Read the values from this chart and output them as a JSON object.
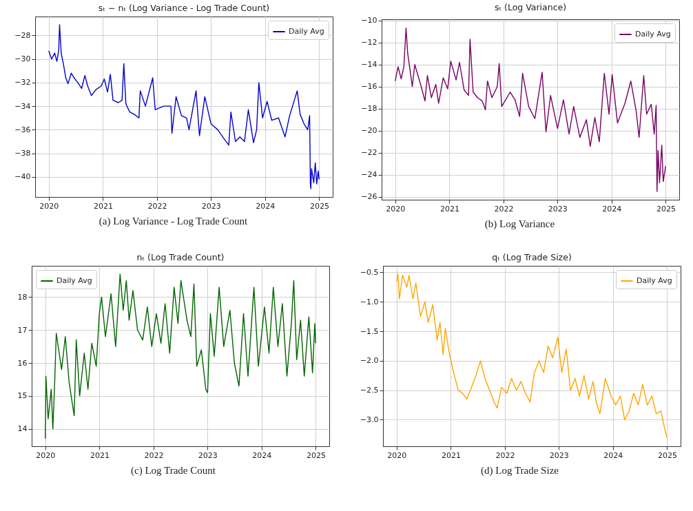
{
  "chart_data": [
    {
      "type": "line",
      "title": "sₜ − nₜ (Log Variance - Log Trade Count)",
      "annotations": [
        "(a) Log Variance - Log Trade Count"
      ],
      "legend": "top right",
      "grid": true,
      "xlim": [
        "2019-10-01",
        "2025-04-02"
      ],
      "xticks": [
        "2020",
        "2021",
        "2022",
        "2023",
        "2024",
        "2025"
      ],
      "ylim": [
        -41.7,
        -26.4
      ],
      "yticks": [
        -40,
        -38,
        -36,
        -34,
        -32,
        -30,
        -28
      ],
      "series": [
        {
          "name": "Daily Avg",
          "color": "#0000cc",
          "x": [
            "2020-01-01",
            "2020-01-20",
            "2020-02-10",
            "2020-02-25",
            "2020-03-08",
            "2020-03-14",
            "2020-03-25",
            "2020-04-10",
            "2020-04-25",
            "2020-05-10",
            "2020-06-01",
            "2020-06-20",
            "2020-07-15",
            "2020-08-10",
            "2020-09-01",
            "2020-09-20",
            "2020-10-15",
            "2020-11-15",
            "2020-12-20",
            "2021-01-10",
            "2021-02-01",
            "2021-02-20",
            "2021-03-10",
            "2021-04-15",
            "2021-05-10",
            "2021-05-22",
            "2021-06-05",
            "2021-07-01",
            "2021-08-01",
            "2021-09-01",
            "2021-09-10",
            "2021-10-15",
            "2021-12-03",
            "2021-12-20",
            "2022-02-15",
            "2022-04-05",
            "2022-04-12",
            "2022-05-10",
            "2022-06-15",
            "2022-07-20",
            "2022-08-05",
            "2022-09-22",
            "2022-10-15",
            "2022-11-20",
            "2023-01-01",
            "2023-02-15",
            "2023-04-01",
            "2023-05-01",
            "2023-05-15",
            "2023-06-15",
            "2023-07-15",
            "2023-08-15",
            "2023-09-10",
            "2023-10-15",
            "2023-11-05",
            "2023-11-20",
            "2023-12-15",
            "2024-01-15",
            "2024-02-15",
            "2024-04-01",
            "2024-05-15",
            "2024-06-15",
            "2024-08-05",
            "2024-08-25",
            "2024-09-20",
            "2024-10-15",
            "2024-10-28",
            "2024-11-02",
            "2024-11-05",
            "2024-11-10",
            "2024-11-25",
            "2024-12-05",
            "2024-12-15",
            "2024-12-25",
            "2024-12-31"
          ],
          "values": [
            -29.3,
            -30.0,
            -29.5,
            -30.2,
            -29.3,
            -27.1,
            -29.5,
            -30.5,
            -31.6,
            -32.1,
            -31.2,
            -31.6,
            -32.0,
            -32.5,
            -31.4,
            -32.3,
            -33.1,
            -32.6,
            -32.3,
            -31.7,
            -32.8,
            -31.3,
            -33.5,
            -33.7,
            -33.5,
            -30.4,
            -33.8,
            -34.5,
            -34.7,
            -35.0,
            -32.7,
            -34.0,
            -31.6,
            -34.3,
            -34.0,
            -34.0,
            -36.3,
            -33.2,
            -34.8,
            -35.0,
            -36.0,
            -32.7,
            -36.5,
            -33.2,
            -35.5,
            -36.0,
            -36.8,
            -37.3,
            -34.5,
            -37.0,
            -36.6,
            -37.0,
            -34.3,
            -37.1,
            -36.0,
            -32.0,
            -35.0,
            -33.6,
            -35.2,
            -35.0,
            -36.6,
            -34.8,
            -32.7,
            -34.7,
            -35.5,
            -36.0,
            -34.8,
            -40.6,
            -41.0,
            -39.3,
            -40.5,
            -38.8,
            -40.6,
            -39.5,
            -40.2
          ]
        }
      ]
    },
    {
      "type": "line",
      "title": "sₜ (Log Variance)",
      "annotations": [
        "(b) Log Variance"
      ],
      "legend": "top right",
      "grid": true,
      "xlim": [
        "2019-10-01",
        "2025-04-02"
      ],
      "xticks": [
        "2020",
        "2021",
        "2022",
        "2023",
        "2024",
        "2025"
      ],
      "ylim": [
        -26.25,
        -9.9
      ],
      "yticks": [
        -26,
        -24,
        -22,
        -20,
        -18,
        -16,
        -14,
        -12,
        -10
      ],
      "series": [
        {
          "name": "Daily Avg",
          "color": "#780062",
          "x": [
            "2020-01-01",
            "2020-01-20",
            "2020-02-10",
            "2020-02-28",
            "2020-03-14",
            "2020-03-25",
            "2020-04-10",
            "2020-04-25",
            "2020-05-12",
            "2020-06-20",
            "2020-07-20",
            "2020-08-05",
            "2020-09-01",
            "2020-10-01",
            "2020-10-20",
            "2020-11-20",
            "2020-12-20",
            "2021-01-10",
            "2021-02-15",
            "2021-03-10",
            "2021-04-10",
            "2021-05-10",
            "2021-05-20",
            "2021-06-10",
            "2021-07-10",
            "2021-08-10",
            "2021-09-01",
            "2021-09-15",
            "2021-10-15",
            "2021-11-20",
            "2021-12-03",
            "2021-12-20",
            "2022-02-15",
            "2022-03-20",
            "2022-04-20",
            "2022-05-10",
            "2022-06-20",
            "2022-08-01",
            "2022-09-19",
            "2022-10-15",
            "2022-11-15",
            "2023-01-01",
            "2023-02-10",
            "2023-03-20",
            "2023-04-20",
            "2023-06-01",
            "2023-07-15",
            "2023-08-10",
            "2023-09-10",
            "2023-10-10",
            "2023-11-13",
            "2023-12-15",
            "2024-01-05",
            "2024-02-10",
            "2024-04-01",
            "2024-05-10",
            "2024-06-15",
            "2024-07-05",
            "2024-08-05",
            "2024-08-25",
            "2024-09-25",
            "2024-10-15",
            "2024-10-28",
            "2024-11-03",
            "2024-11-10",
            "2024-11-20",
            "2024-12-05",
            "2024-12-15",
            "2024-12-31"
          ],
          "values": [
            -15.5,
            -14.2,
            -15.3,
            -14.2,
            -10.7,
            -13.0,
            -14.5,
            -16.0,
            -14.0,
            -15.8,
            -17.3,
            -15.0,
            -17.0,
            -15.8,
            -17.5,
            -15.2,
            -16.2,
            -13.7,
            -15.4,
            -13.8,
            -16.3,
            -16.8,
            -11.7,
            -16.5,
            -17.0,
            -17.3,
            -18.1,
            -15.5,
            -17.0,
            -16.0,
            -13.9,
            -17.8,
            -16.5,
            -17.2,
            -18.7,
            -14.8,
            -17.8,
            -18.9,
            -14.7,
            -20.1,
            -16.8,
            -19.8,
            -17.2,
            -20.3,
            -17.8,
            -20.6,
            -19.0,
            -21.4,
            -18.8,
            -21.0,
            -14.8,
            -18.5,
            -14.9,
            -19.3,
            -17.5,
            -15.5,
            -18.2,
            -20.6,
            -15.0,
            -18.5,
            -17.6,
            -20.3,
            -17.7,
            -25.5,
            -21.8,
            -24.7,
            -21.3,
            -24.6,
            -23.2
          ]
        }
      ]
    },
    {
      "type": "line",
      "title": "nₜ (Log Trade Count)",
      "annotations": [
        "(c) Log Trade Count"
      ],
      "legend": "top left",
      "grid": true,
      "xlim": [
        "2019-10-01",
        "2025-04-02"
      ],
      "xticks": [
        "2020",
        "2021",
        "2022",
        "2023",
        "2024",
        "2025"
      ],
      "ylim": [
        13.47,
        18.95
      ],
      "yticks": [
        14,
        15,
        16,
        17,
        18
      ],
      "series": [
        {
          "name": "Daily Avg",
          "color": "#006400",
          "x": [
            "2020-01-01",
            "2020-01-05",
            "2020-01-20",
            "2020-02-10",
            "2020-02-21",
            "2020-03-05",
            "2020-03-15",
            "2020-04-20",
            "2020-05-15",
            "2020-06-10",
            "2020-07-14",
            "2020-07-28",
            "2020-08-20",
            "2020-09-20",
            "2020-10-15",
            "2020-11-10",
            "2020-12-10",
            "2020-12-31",
            "2021-01-15",
            "2021-02-10",
            "2021-03-20",
            "2021-04-20",
            "2021-05-20",
            "2021-06-10",
            "2021-07-01",
            "2021-07-20",
            "2021-08-15",
            "2021-09-15",
            "2021-10-20",
            "2021-11-20",
            "2021-12-20",
            "2022-01-20",
            "2022-02-20",
            "2022-03-20",
            "2022-04-20",
            "2022-05-20",
            "2022-06-15",
            "2022-07-05",
            "2022-08-15",
            "2022-09-10",
            "2022-10-01",
            "2022-10-20",
            "2022-11-20",
            "2022-12-20",
            "2023-01-01",
            "2023-01-20",
            "2023-02-15",
            "2023-03-20",
            "2023-04-20",
            "2023-06-01",
            "2023-07-01",
            "2023-08-01",
            "2023-09-01",
            "2023-10-01",
            "2023-11-10",
            "2023-12-10",
            "2024-01-20",
            "2024-02-20",
            "2024-03-20",
            "2024-04-20",
            "2024-05-20",
            "2024-06-20",
            "2024-07-20",
            "2024-08-05",
            "2024-08-25",
            "2024-09-20",
            "2024-10-15",
            "2024-11-15",
            "2024-12-10",
            "2024-12-25",
            "2024-12-31"
          ],
          "values": [
            13.7,
            15.6,
            14.3,
            15.2,
            14.0,
            15.5,
            16.9,
            15.8,
            16.8,
            15.4,
            14.4,
            16.7,
            15.0,
            16.3,
            15.2,
            16.6,
            15.9,
            17.5,
            18.0,
            16.8,
            18.1,
            16.5,
            18.7,
            17.6,
            18.5,
            17.3,
            18.2,
            17.0,
            16.7,
            17.7,
            16.5,
            17.5,
            16.6,
            17.8,
            16.3,
            18.3,
            17.2,
            18.5,
            17.3,
            16.8,
            18.4,
            15.9,
            16.4,
            15.2,
            15.1,
            17.5,
            16.2,
            18.3,
            16.5,
            17.6,
            16.0,
            15.3,
            17.5,
            15.6,
            18.3,
            15.9,
            17.7,
            16.3,
            18.3,
            16.5,
            17.8,
            15.6,
            17.2,
            18.5,
            16.1,
            17.3,
            15.6,
            17.4,
            15.7,
            17.2,
            16.6
          ]
        }
      ]
    },
    {
      "type": "line",
      "title": "qₜ (Log Trade Size)",
      "annotations": [
        "(d) Log Trade Size"
      ],
      "legend": "top right",
      "grid": true,
      "xlim": [
        "2019-10-01",
        "2025-04-02"
      ],
      "xticks": [
        "2020",
        "2021",
        "2022",
        "2023",
        "2024",
        "2025"
      ],
      "ylim": [
        -3.45,
        -0.39
      ],
      "yticks": [
        {
          "value": -3,
          "label": "−3.0"
        },
        {
          "value": -2.5,
          "label": "−2.5"
        },
        {
          "value": -2,
          "label": "−2.0"
        },
        {
          "value": -1.5,
          "label": "−1.5"
        },
        {
          "value": -1,
          "label": "−1.0"
        },
        {
          "value": -0.5,
          "label": "−0.5"
        }
      ],
      "series": [
        {
          "name": "Daily Avg",
          "color": "#ffa500",
          "x": [
            "2020-01-01",
            "2020-01-10",
            "2020-01-20",
            "2020-02-10",
            "2020-03-10",
            "2020-03-25",
            "2020-04-20",
            "2020-05-10",
            "2020-06-10",
            "2020-07-10",
            "2020-08-01",
            "2020-09-01",
            "2020-10-01",
            "2020-10-20",
            "2020-11-10",
            "2020-11-25",
            "2020-12-20",
            "2021-01-20",
            "2021-02-20",
            "2021-03-20",
            "2021-04-20",
            "2021-05-20",
            "2021-06-20",
            "2021-07-20",
            "2021-08-20",
            "2021-09-20",
            "2021-10-20",
            "2021-11-10",
            "2021-12-10",
            "2022-01-15",
            "2022-02-15",
            "2022-03-20",
            "2022-04-20",
            "2022-05-20",
            "2022-06-20",
            "2022-07-20",
            "2022-08-20",
            "2022-09-20",
            "2022-10-20",
            "2022-11-20",
            "2022-12-25",
            "2023-01-20",
            "2023-02-20",
            "2023-03-20",
            "2023-04-20",
            "2023-05-20",
            "2023-06-20",
            "2023-07-20",
            "2023-08-20",
            "2023-09-10",
            "2023-10-05",
            "2023-11-10",
            "2023-12-20",
            "2024-01-20",
            "2024-02-20",
            "2024-03-20",
            "2024-04-20",
            "2024-05-20",
            "2024-06-20",
            "2024-07-20",
            "2024-08-20",
            "2024-09-20",
            "2024-10-20",
            "2024-11-20",
            "2024-12-15",
            "2024-12-31"
          ],
          "values": [
            -0.65,
            -0.53,
            -0.95,
            -0.55,
            -0.75,
            -0.55,
            -0.95,
            -0.68,
            -1.25,
            -1.0,
            -1.35,
            -1.05,
            -1.65,
            -1.35,
            -1.9,
            -1.45,
            -1.85,
            -2.2,
            -2.5,
            -2.55,
            -2.65,
            -2.45,
            -2.25,
            -2.0,
            -2.3,
            -2.5,
            -2.7,
            -2.8,
            -2.45,
            -2.55,
            -2.3,
            -2.5,
            -2.35,
            -2.55,
            -2.7,
            -2.2,
            -2.0,
            -2.2,
            -1.75,
            -1.95,
            -1.6,
            -2.2,
            -1.8,
            -2.5,
            -2.3,
            -2.6,
            -2.25,
            -2.65,
            -2.35,
            -2.7,
            -2.9,
            -2.3,
            -2.6,
            -2.75,
            -2.6,
            -3.0,
            -2.85,
            -2.55,
            -2.75,
            -2.4,
            -2.75,
            -2.6,
            -2.9,
            -2.85,
            -3.15,
            -3.3
          ]
        }
      ]
    }
  ]
}
